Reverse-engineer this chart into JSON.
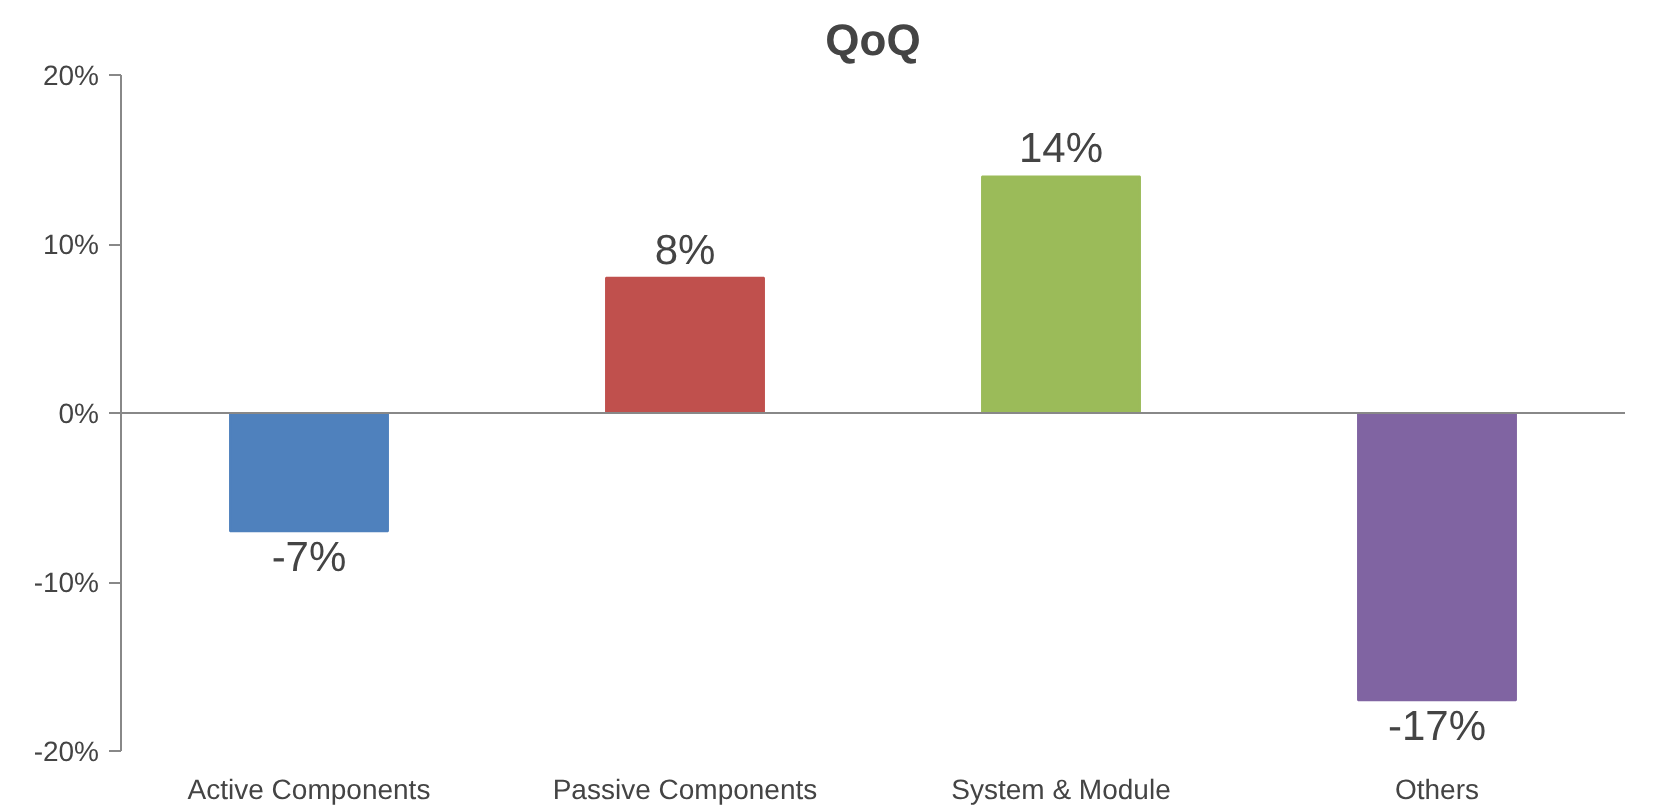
{
  "chart_data": {
    "type": "bar",
    "title": "QoQ",
    "categories": [
      "Active Components",
      "Passive Components",
      "System & Module",
      "Others"
    ],
    "values": [
      -7,
      8,
      14,
      -17
    ],
    "colors": [
      "#4f81bd",
      "#c0504d",
      "#9bbb59",
      "#8064a2"
    ],
    "value_labels": [
      "-7%",
      "8%",
      "14%",
      "-17%"
    ],
    "ylim": [
      -20,
      20
    ],
    "yticks": [
      {
        "value": -20,
        "label": "-20%"
      },
      {
        "value": -10,
        "label": "-10%"
      },
      {
        "value": 0,
        "label": "0%"
      },
      {
        "value": 10,
        "label": "10%"
      },
      {
        "value": 20,
        "label": "20%"
      }
    ],
    "grid": false,
    "ref_lines": [
      {
        "axis": "y",
        "value": 0,
        "label": null,
        "color": "#888888"
      }
    ]
  }
}
